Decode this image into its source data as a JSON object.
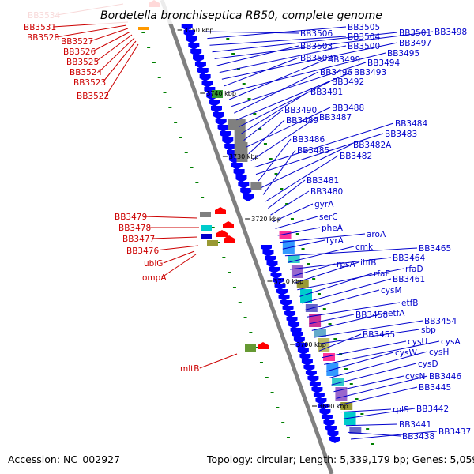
{
  "title": "Bordetella bronchiseptica RB50, complete genome",
  "footer": {
    "accession": "Accession: NC_002927",
    "stats": "Topology: circular; Length: 5,339,179 bp; Genes: 5,059"
  },
  "ticks": [
    "3750 kbp",
    "3740 kbp",
    "3730 kbp",
    "3720 kbp",
    "3710 kbp",
    "3700 kbp",
    "3690 kbp"
  ],
  "red_labels": [
    "BB3534",
    "BB3531",
    "BB3528",
    "BB3527",
    "BB3526",
    "BB3525",
    "BB3524",
    "BB3523",
    "BB3522",
    "BB3479",
    "BB3478",
    "BB3477",
    "BB3476",
    "ubiG",
    "ompA",
    "mltB"
  ],
  "blue_labels": [
    "BB3506",
    "BB3505",
    "BB3504",
    "BB3501",
    "BB3498",
    "BB3503",
    "BB3500",
    "BB3497",
    "BB3502",
    "BB3495",
    "BB3499",
    "BB3494",
    "BB3496",
    "BB3493",
    "BB3492",
    "BB3491",
    "BB3490",
    "BB3488",
    "BB3489",
    "BB3487",
    "BB3484",
    "BB3483",
    "BB3486",
    "BB3482A",
    "BB3485",
    "BB3482",
    "BB3481",
    "BB3480",
    "gyrA",
    "serC",
    "pheA",
    "aroA",
    "tyrA",
    "BB3465",
    "cmk",
    "BB3464",
    "rpsA",
    "ihfB",
    "rfaD",
    "rfaE",
    "BB3461",
    "cysM",
    "etfB",
    "BB3458",
    "etfA",
    "BB3454",
    "sbp",
    "BB3455",
    "cysU",
    "cysA",
    "cysW",
    "cysH",
    "cysD",
    "cysN",
    "BB3446",
    "BB3445",
    "rplS",
    "BB3442",
    "BB3441",
    "BB3438",
    "BB3437"
  ],
  "colors": {
    "forward_genes": "#0000ff",
    "reverse_genes": "#ff0000",
    "leader_lines_forward": "#0000cc",
    "leader_lines_reverse": "#cc0000",
    "genome_backbone": "#808080",
    "gc_dots": "#008000"
  }
}
